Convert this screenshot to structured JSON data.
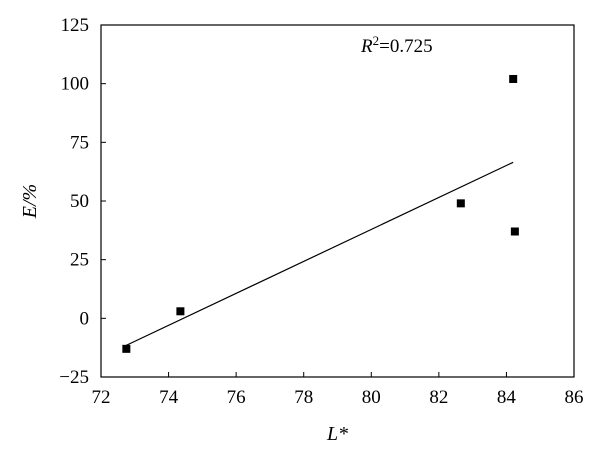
{
  "chart_data": {
    "type": "scatter",
    "xlabel": "L*",
    "ylabel": "E/%",
    "xlim": [
      72,
      86
    ],
    "ylim": [
      -25,
      125
    ],
    "xticks": [
      72,
      74,
      76,
      78,
      80,
      82,
      84,
      86
    ],
    "yticks": [
      -25,
      0,
      25,
      50,
      75,
      100,
      125
    ],
    "ytick_labels": [
      "−25",
      "0",
      "25",
      "50",
      "75",
      "100",
      "125"
    ],
    "grid": false,
    "series": [
      {
        "points": [
          {
            "x": 72.75,
            "y": -13
          },
          {
            "x": 74.35,
            "y": 3
          },
          {
            "x": 82.65,
            "y": 49
          },
          {
            "x": 84.2,
            "y": 102
          },
          {
            "x": 84.25,
            "y": 37
          }
        ]
      }
    ],
    "fit_line": {
      "from": {
        "x": 72.75,
        "y": -11.5
      },
      "to": {
        "x": 84.2,
        "y": 66.5
      }
    },
    "annotation": {
      "base": "R",
      "sup": "2",
      "tail": "=0.725"
    },
    "colors": {
      "marker": "#000000",
      "line": "#000000",
      "axes": "#000000"
    }
  }
}
